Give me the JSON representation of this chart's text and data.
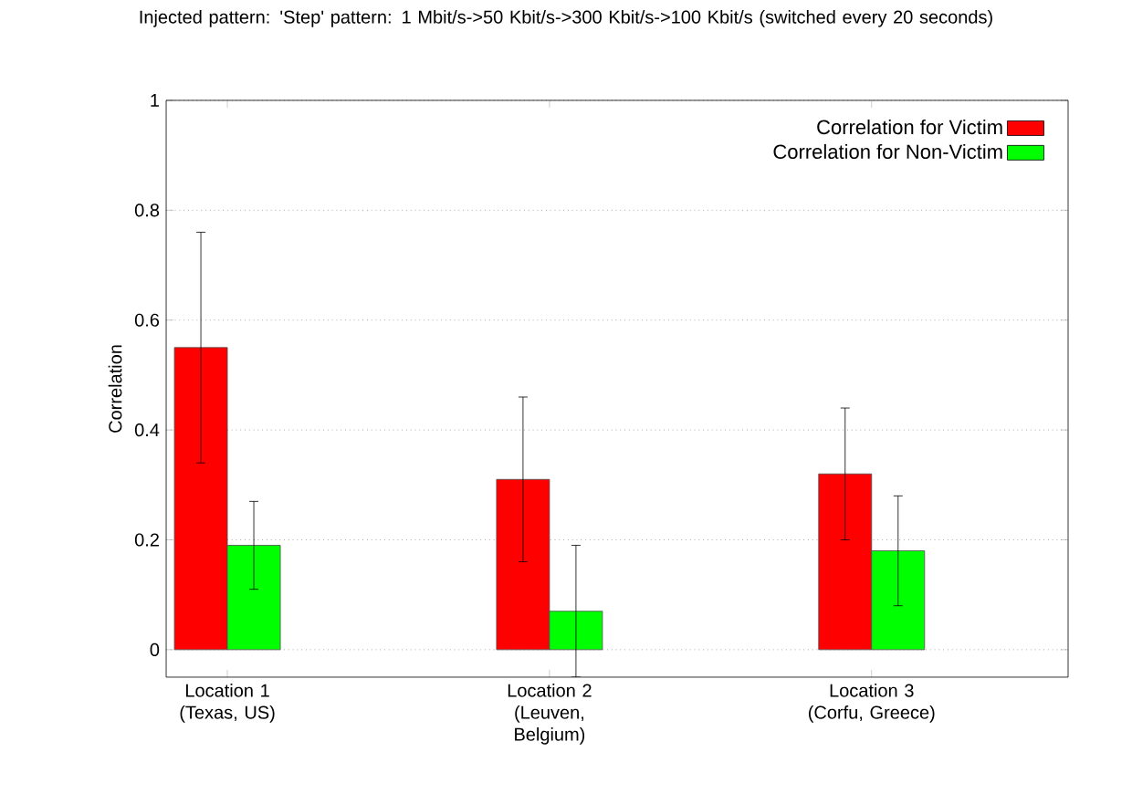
{
  "chart_data": {
    "type": "bar",
    "title": "Injected pattern: 'Step' pattern: 1 Mbit/s->50 Kbit/s->300 Kbit/s->100 Kbit/s (switched every 20 seconds)",
    "ylabel": "Correlation",
    "categories": [
      "Location 1 (Texas, US)",
      "Location 2 (Leuven, Belgium)",
      "Location 3 (Corfu, Greece)"
    ],
    "series": [
      {
        "name": "Correlation for Victim",
        "color": "#ff0000",
        "values": [
          0.55,
          0.31,
          0.32
        ],
        "errors": [
          0.21,
          0.15,
          0.12
        ]
      },
      {
        "name": "Correlation for Non-Victim",
        "color": "#00ff00",
        "values": [
          0.19,
          0.07,
          0.18
        ],
        "errors": [
          0.08,
          0.12,
          0.1
        ]
      }
    ],
    "ylim": [
      -0.05,
      1
    ],
    "yticks": [
      0,
      0.2,
      0.4,
      0.6,
      0.8,
      1
    ],
    "grid": "y",
    "legend": "top right"
  }
}
